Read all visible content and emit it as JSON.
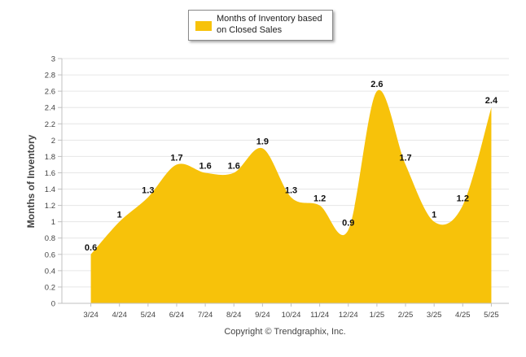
{
  "colors": {
    "fill": "#F7C20A",
    "grid": "#E6E6E6",
    "axis": "#C0C0C0",
    "text": "#444444"
  },
  "legend": {
    "line1": "Months of Inventory based",
    "line2": "on Closed Sales"
  },
  "credit": "Copyright © Trendgraphix, Inc.",
  "chart_data": {
    "type": "area",
    "legend_position": "top-center",
    "grid": true,
    "ylabel": "Months of Inventory",
    "ylim": [
      0,
      3
    ],
    "yticks": [
      0,
      0.2,
      0.4,
      0.6,
      0.8,
      1,
      1.2,
      1.4,
      1.6,
      1.8,
      2,
      2.2,
      2.4,
      2.6,
      2.8,
      3
    ],
    "categories": [
      "3/24",
      "4/24",
      "5/24",
      "6/24",
      "7/24",
      "8/24",
      "9/24",
      "10/24",
      "11/24",
      "12/24",
      "1/25",
      "2/25",
      "3/25",
      "4/25",
      "5/25"
    ],
    "series": [
      {
        "name": "Months of Inventory based on Closed Sales",
        "values": [
          0.6,
          1,
          1.3,
          1.7,
          1.6,
          1.6,
          1.9,
          1.3,
          1.2,
          0.9,
          2.6,
          1.7,
          1,
          1.2,
          2.4
        ]
      }
    ]
  }
}
